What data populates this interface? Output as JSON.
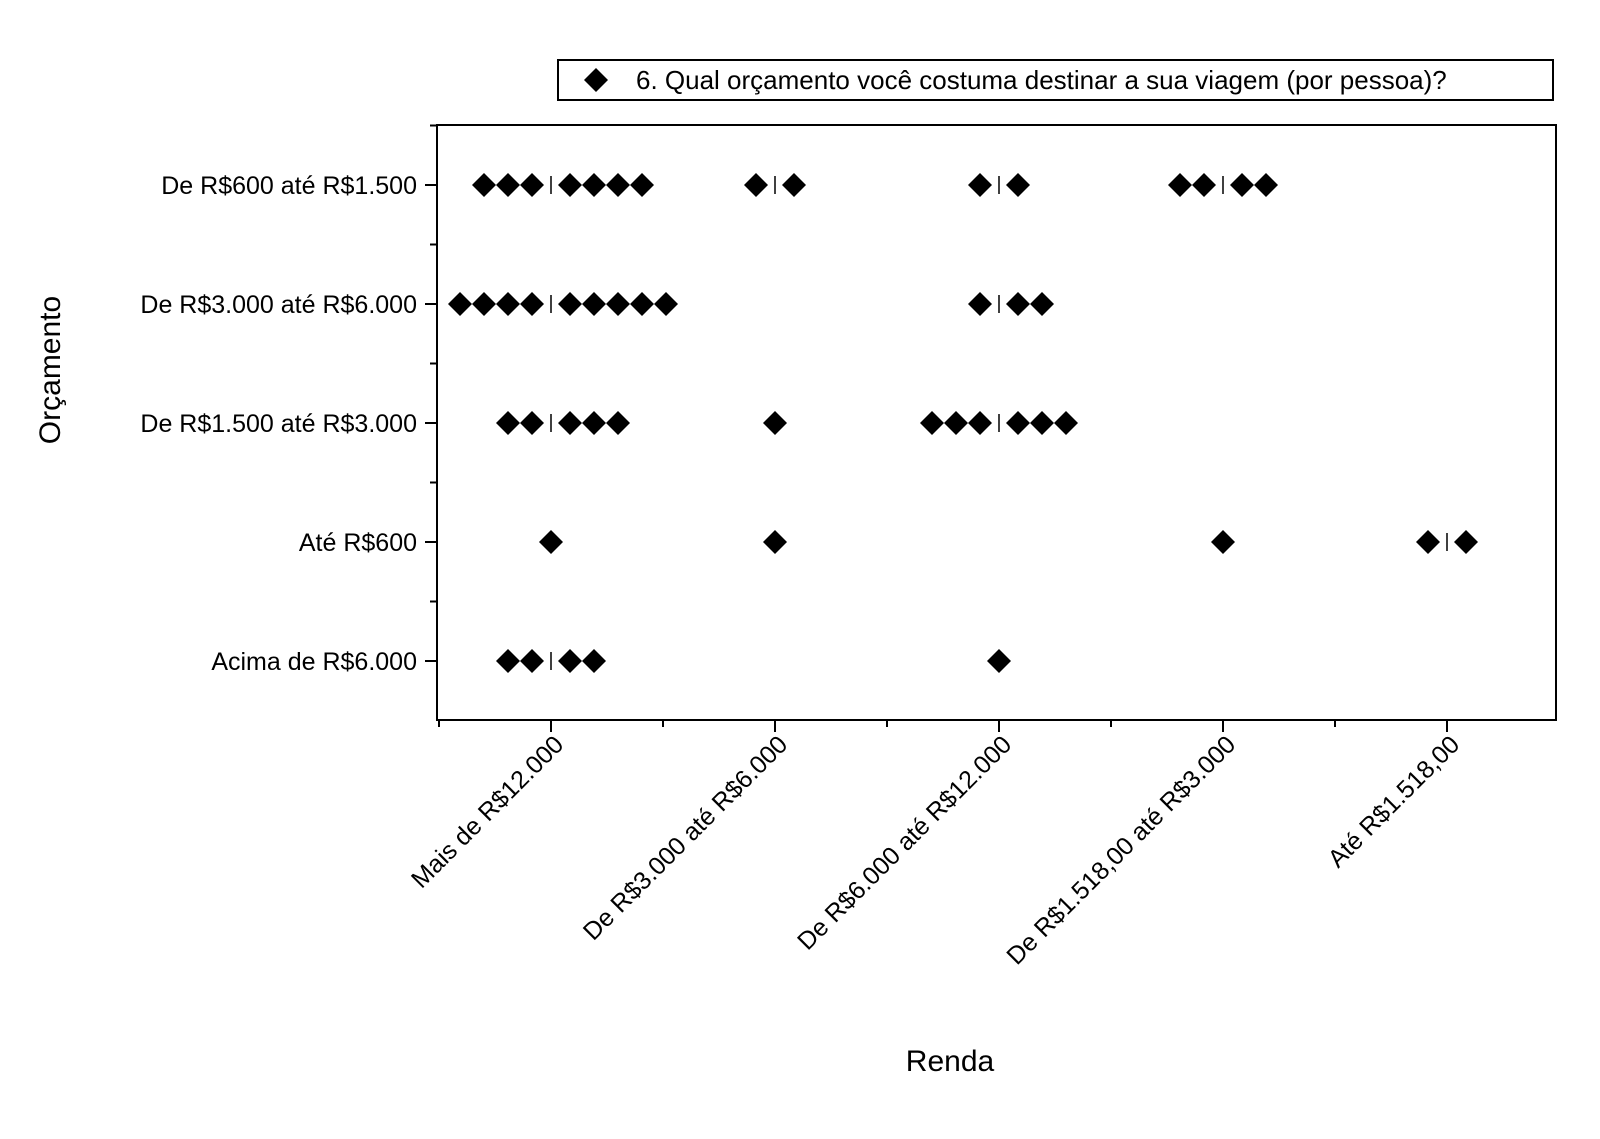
{
  "chart_data": {
    "type": "scatter",
    "title": "",
    "xlabel": "Renda",
    "ylabel": "Orçamento",
    "x_categories": [
      "Mais de R$12.000",
      "De R$3.000 até R$6.000",
      "De R$6.000 até R$12.000",
      "De R$1.518,00 até R$3.000",
      "Até R$1.518,00"
    ],
    "y_categories": [
      "Acima de R$6.000",
      "Até R$600",
      "De R$1.500 até R$3.000",
      "De R$3.000 até R$6.000",
      "De R$600 até R$1.500"
    ],
    "legend": {
      "position": "top-right",
      "entries": [
        "6. Qual orçamento você costuma destinar a sua viagem (por pessoa)?"
      ]
    },
    "series": [
      {
        "name": "6. Qual orçamento você costuma destinar a sua viagem (por pessoa)?",
        "marker": "diamond",
        "color": "#000000",
        "counts": [
          {
            "x": "Mais de R$12.000",
            "y": "De R$600 até R$1.500",
            "count": 7
          },
          {
            "x": "De R$3.000 até R$6.000",
            "y": "De R$600 até R$1.500",
            "count": 2
          },
          {
            "x": "De R$6.000 até R$12.000",
            "y": "De R$600 até R$1.500",
            "count": 2
          },
          {
            "x": "De R$1.518,00 até R$3.000",
            "y": "De R$600 até R$1.500",
            "count": 4
          },
          {
            "x": "Mais de R$12.000",
            "y": "De R$3.000 até R$6.000",
            "count": 9
          },
          {
            "x": "De R$6.000 até R$12.000",
            "y": "De R$3.000 até R$6.000",
            "count": 3
          },
          {
            "x": "Mais de R$12.000",
            "y": "De R$1.500 até R$3.000",
            "count": 5
          },
          {
            "x": "De R$3.000 até R$6.000",
            "y": "De R$1.500 até R$3.000",
            "count": 1
          },
          {
            "x": "De R$6.000 até R$12.000",
            "y": "De R$1.500 até R$3.000",
            "count": 6
          },
          {
            "x": "Mais de R$12.000",
            "y": "Até R$600",
            "count": 1
          },
          {
            "x": "De R$3.000 até R$6.000",
            "y": "Até R$600",
            "count": 1
          },
          {
            "x": "De R$1.518,00 até R$3.000",
            "y": "Até R$600",
            "count": 1
          },
          {
            "x": "Até R$1.518,00",
            "y": "Até R$600",
            "count": 2
          },
          {
            "x": "Mais de R$12.000",
            "y": "Acima de R$6.000",
            "count": 4
          },
          {
            "x": "De R$6.000 até R$12.000",
            "y": "Acima de R$6.000",
            "count": 1
          }
        ]
      }
    ],
    "jitter": "beeswarm",
    "grid": false
  }
}
